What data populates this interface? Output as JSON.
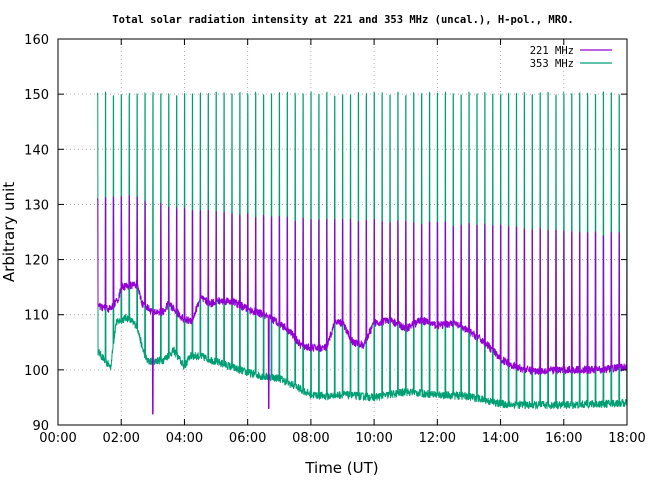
{
  "chart_data": {
    "type": "line",
    "title": "Total solar radiation intensity at 221 and 353 MHz (uncal.), H-pol., MRO.",
    "xlabel": "Time (UT)",
    "ylabel": "Arbitrary unit",
    "xlim": [
      "00:00",
      "18:00"
    ],
    "ylim": [
      90,
      160
    ],
    "x_ticks": [
      "00:00",
      "02:00",
      "04:00",
      "06:00",
      "08:00",
      "10:00",
      "12:00",
      "14:00",
      "16:00",
      "18:00"
    ],
    "y_ticks": [
      "90",
      "100",
      "110",
      "120",
      "130",
      "140",
      "150",
      "160"
    ],
    "grid": true,
    "legend_position": "top-right",
    "series": [
      {
        "name": "221 MHz",
        "color": "#9400d3",
        "data_start": "01:15",
        "data_end": "18:00",
        "baseline": [
          [
            "01:15",
            111.5
          ],
          [
            "01:40",
            111
          ],
          [
            "01:55",
            113
          ],
          [
            "02:00",
            115
          ],
          [
            "02:30",
            115.5
          ],
          [
            "02:40",
            112
          ],
          [
            "03:00",
            110.5
          ],
          [
            "03:20",
            110.5
          ],
          [
            "03:30",
            112
          ],
          [
            "04:00",
            109
          ],
          [
            "04:15",
            109
          ],
          [
            "04:30",
            113
          ],
          [
            "04:50",
            112
          ],
          [
            "05:00",
            112.5
          ],
          [
            "05:30",
            112.5
          ],
          [
            "06:00",
            111
          ],
          [
            "06:30",
            110
          ],
          [
            "07:00",
            108.5
          ],
          [
            "07:20",
            107
          ],
          [
            "07:40",
            104.5
          ],
          [
            "08:00",
            104
          ],
          [
            "08:30",
            104
          ],
          [
            "08:45",
            108.5
          ],
          [
            "09:00",
            108.5
          ],
          [
            "09:20",
            105
          ],
          [
            "09:40",
            104.5
          ],
          [
            "10:00",
            108.5
          ],
          [
            "10:30",
            109
          ],
          [
            "11:00",
            107.5
          ],
          [
            "11:30",
            109
          ],
          [
            "12:00",
            108
          ],
          [
            "12:30",
            108.5
          ],
          [
            "13:00",
            107
          ],
          [
            "13:30",
            105
          ],
          [
            "14:00",
            102
          ],
          [
            "14:30",
            100.5
          ],
          [
            "15:00",
            99.8
          ],
          [
            "16:00",
            100
          ],
          [
            "17:00",
            100
          ],
          [
            "18:00",
            100.5
          ]
        ],
        "spike_peak": [
          [
            "01:15",
            131
          ],
          [
            "02:00",
            131.5
          ],
          [
            "02:30",
            131
          ],
          [
            "04:00",
            129
          ],
          [
            "06:00",
            128
          ],
          [
            "08:00",
            127
          ],
          [
            "10:00",
            127
          ],
          [
            "12:00",
            126.5
          ],
          [
            "14:00",
            126
          ],
          [
            "16:00",
            125
          ],
          [
            "18:00",
            124.5
          ]
        ],
        "dips": [
          [
            "03:00",
            92
          ],
          [
            "06:40",
            93
          ]
        ]
      },
      {
        "name": "353 MHz",
        "color": "#009e73",
        "data_start": "01:15",
        "data_end": "18:00",
        "baseline": [
          [
            "01:15",
            103.5
          ],
          [
            "01:30",
            101.5
          ],
          [
            "01:40",
            100.5
          ],
          [
            "01:50",
            108.5
          ],
          [
            "02:10",
            109.5
          ],
          [
            "02:30",
            108
          ],
          [
            "02:40",
            104
          ],
          [
            "02:50",
            101.5
          ],
          [
            "03:20",
            101.8
          ],
          [
            "03:40",
            103.5
          ],
          [
            "04:00",
            100.5
          ],
          [
            "04:10",
            102.5
          ],
          [
            "04:30",
            102.5
          ],
          [
            "05:00",
            101.5
          ],
          [
            "05:30",
            100.5
          ],
          [
            "06:00",
            99.5
          ],
          [
            "06:30",
            98.8
          ],
          [
            "07:00",
            98.5
          ],
          [
            "07:30",
            97
          ],
          [
            "08:00",
            95.5
          ],
          [
            "08:30",
            95.2
          ],
          [
            "09:00",
            95.5
          ],
          [
            "10:00",
            95
          ],
          [
            "11:00",
            96
          ],
          [
            "12:00",
            95.5
          ],
          [
            "13:00",
            95.2
          ],
          [
            "13:30",
            94.5
          ],
          [
            "14:00",
            93.8
          ],
          [
            "15:00",
            93.6
          ],
          [
            "16:00",
            93.6
          ],
          [
            "17:00",
            93.8
          ],
          [
            "18:00",
            94
          ]
        ],
        "spike_peak": [
          [
            "01:15",
            150
          ],
          [
            "18:00",
            150
          ]
        ],
        "dips": []
      }
    ]
  }
}
